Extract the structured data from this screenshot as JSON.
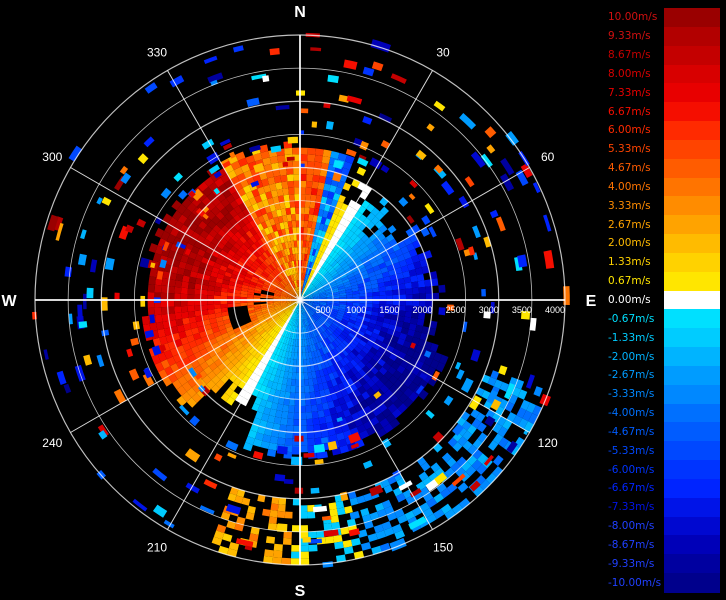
{
  "chart_data": {
    "type": "polar_heatmap",
    "description_units": "radial velocity (m/s), range rings in meters",
    "compass": {
      "north": "N",
      "east": "E",
      "south": "S",
      "west": "W"
    },
    "azimuth_labels": [
      "30",
      "60",
      "120",
      "150",
      "210",
      "240",
      "300",
      "330"
    ],
    "azimuth_values_deg": [
      30,
      60,
      120,
      150,
      210,
      240,
      300,
      330
    ],
    "range_labels": [
      "500",
      "1000",
      "1500",
      "2000",
      "2500",
      "3000",
      "3500",
      "4000"
    ],
    "range_max": 4000,
    "legend": {
      "labels": [
        "10.00m/s",
        "9.33m/s",
        "8.67m/s",
        "8.00m/s",
        "7.33m/s",
        "6.67m/s",
        "6.00m/s",
        "5.33m/s",
        "4.67m/s",
        "4.00m/s",
        "3.33m/s",
        "2.67m/s",
        "2.00m/s",
        "1.33m/s",
        "0.67m/s",
        "0.00m/s",
        "-0.67m/s",
        "-1.33m/s",
        "-2.00m/s",
        "-2.67m/s",
        "-3.33m/s",
        "-4.00m/s",
        "-4.67m/s",
        "-5.33m/s",
        "-6.00m/s",
        "-6.67m/s",
        "-7.33m/s",
        "-8.00m/s",
        "-8.67m/s",
        "-9.33m/s",
        "-10.00m/s"
      ],
      "values": [
        10,
        9.33,
        8.67,
        8,
        7.33,
        6.67,
        6,
        5.33,
        4.67,
        4,
        3.33,
        2.67,
        2,
        1.33,
        0.67,
        0,
        -0.67,
        -1.33,
        -2,
        -2.67,
        -3.33,
        -4,
        -4.67,
        -5.33,
        -6,
        -6.67,
        -7.33,
        -8,
        -8.67,
        -9.33,
        -10
      ],
      "colors": [
        "#9a0000",
        "#b20000",
        "#c40000",
        "#d80000",
        "#e80000",
        "#f50e00",
        "#ff2a00",
        "#ff4400",
        "#ff5c00",
        "#ff7400",
        "#ff8c00",
        "#ffa300",
        "#ffbb00",
        "#ffd200",
        "#ffe600",
        "#ffffff",
        "#00e0ff",
        "#00ccff",
        "#00b4ff",
        "#009cff",
        "#0088ff",
        "#0070ff",
        "#005cff",
        "#0048ff",
        "#0034ff",
        "#0024ff",
        "#0014e8",
        "#0008d0",
        "#0000b8",
        "#0000a0",
        "#00008c"
      ]
    },
    "velocity_field": {
      "positive_side_azimuth_deg": [
        210,
        30
      ],
      "negative_side_azimuth_deg": [
        30,
        210
      ],
      "inner_field_range_max": 2400,
      "outer_echo_sector_deg": [
        110,
        200
      ],
      "outer_echo_range_max": 4000
    }
  }
}
